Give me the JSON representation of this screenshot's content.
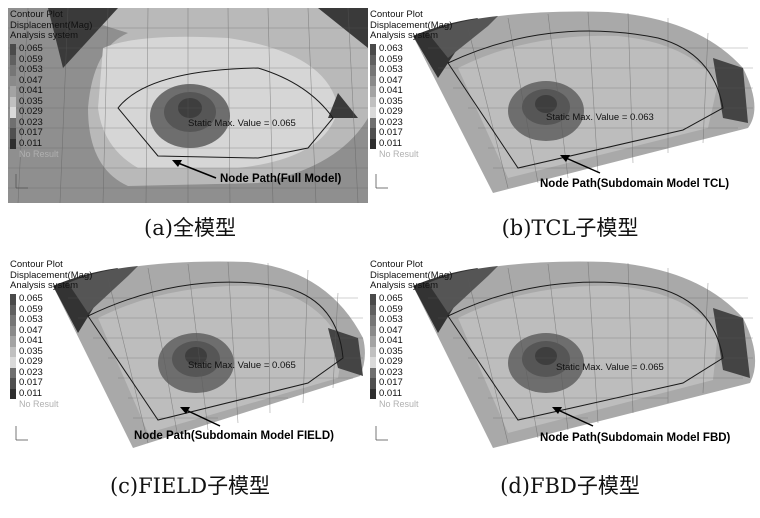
{
  "legend": {
    "title_lines": [
      "Contour Plot",
      "Displacement(Mag)",
      "Analysis system"
    ],
    "no_result": "No Result",
    "swatch_colors": [
      "#4a4a4a",
      "#606060",
      "#767676",
      "#8a8a8a",
      "#a3a3a3",
      "#c0c0c0",
      "#dadada",
      "#e8e8e8",
      "#707070",
      "#505050",
      "#2f2f2f"
    ]
  },
  "panels": [
    {
      "id": "a",
      "legend_values": [
        "0.065",
        "0.059",
        "0.053",
        "0.047",
        "0.041",
        "0.035",
        "0.029",
        "0.023",
        "0.017",
        "0.011"
      ],
      "max_label": "Static Max. Value =",
      "max_value": "0.065",
      "node_path_label": "Node Path(Full Model)",
      "caption": "(a)全模型"
    },
    {
      "id": "b",
      "legend_values": [
        "0.063",
        "0.059",
        "0.053",
        "0.047",
        "0.041",
        "0.035",
        "0.029",
        "0.023",
        "0.017",
        "0.011"
      ],
      "max_label": "Static Max. Value =",
      "max_value": "0.063",
      "node_path_label": "Node Path(Subdomain Model TCL)",
      "caption": "(b)TCL子模型"
    },
    {
      "id": "c",
      "legend_values": [
        "0.065",
        "0.059",
        "0.053",
        "0.047",
        "0.041",
        "0.035",
        "0.029",
        "0.023",
        "0.017",
        "0.011"
      ],
      "max_label": "Static Max. Value =",
      "max_value": "0.065",
      "node_path_label": "Node Path(Subdomain Model FIELD)",
      "caption": "(c)FIELD子模型"
    },
    {
      "id": "d",
      "legend_values": [
        "0.065",
        "0.059",
        "0.053",
        "0.047",
        "0.041",
        "0.035",
        "0.029",
        "0.023",
        "0.017",
        "0.011"
      ],
      "max_label": "Static Max. Value =",
      "max_value": "0.065",
      "node_path_label": "Node Path(Subdomain Model FBD)",
      "caption": "(d)FBD子模型"
    }
  ]
}
